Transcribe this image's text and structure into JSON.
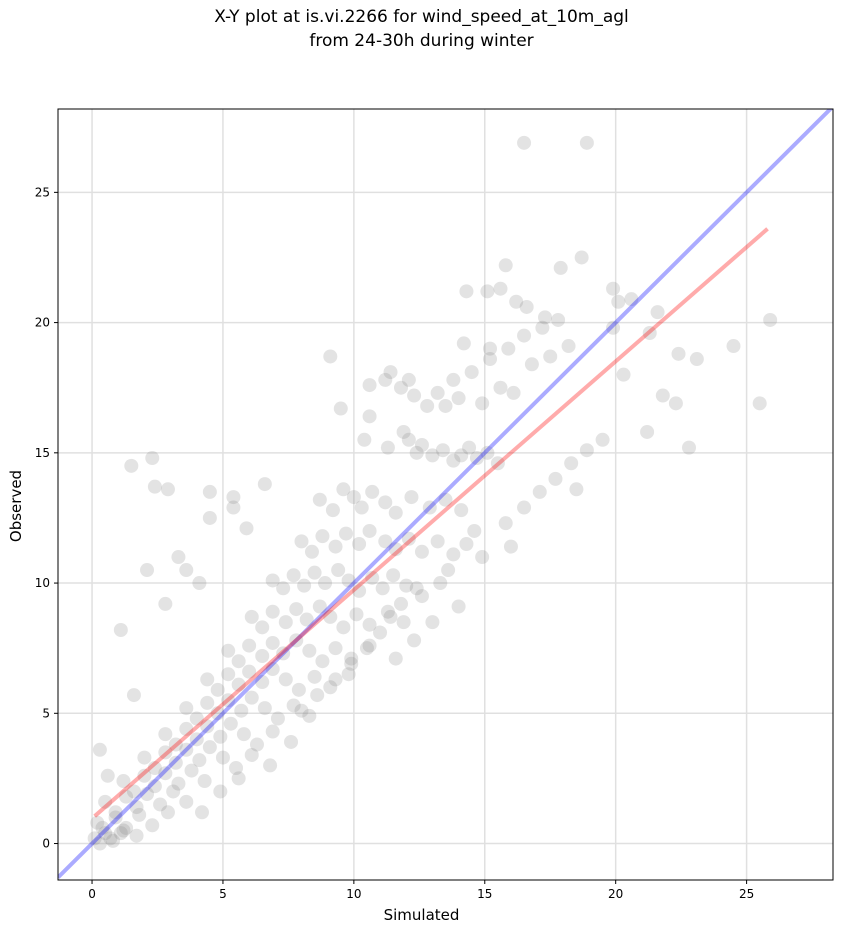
{
  "chart_data": {
    "type": "scatter",
    "title": "X-Y plot at is.vi.2266 for wind_speed_at_10m_agl",
    "subtitle": "from 24-30h during winter",
    "xlabel": "Simulated",
    "ylabel": "Observed",
    "xlim": [
      -1.3,
      28.3
    ],
    "ylim": [
      -1.4,
      28.2
    ],
    "xticks": [
      0,
      5,
      10,
      15,
      20,
      25
    ],
    "yticks": [
      0,
      5,
      10,
      15,
      20,
      25
    ],
    "grid": true,
    "colors": {
      "points": "#808080",
      "identity_line": "#0000ff",
      "fit_line": "#ff0000",
      "grid": "#e0e0e0"
    },
    "identity_line": {
      "x": [
        -1.3,
        28.3
      ],
      "y": [
        -1.3,
        28.3
      ]
    },
    "fit_line": {
      "x": [
        0.1,
        25.8
      ],
      "y": [
        1.05,
        23.6
      ]
    },
    "points": {
      "x": [
        16.5,
        18.9,
        15.8,
        18.7,
        19.9,
        20.1,
        17.9,
        14.3,
        15.1,
        15.6,
        16.2,
        16.6,
        17.3,
        14.2,
        15.2,
        19.9,
        20.6,
        21.3,
        21.6,
        22.4,
        23.1,
        24.5,
        25.5,
        25.9,
        22.3,
        22.8,
        21.8,
        21.2,
        20.3,
        9.5,
        9.1,
        1.5,
        2.3,
        2.4,
        2.9,
        1.1,
        4.5,
        4.5,
        5.4,
        5.4,
        5.9,
        6.6,
        3.3,
        3.6,
        4.1,
        2.1,
        2.8,
        0.3,
        0.6,
        1.6,
        10.6,
        11.2,
        11.4,
        11.8,
        12.1,
        12.3,
        12.8,
        13.2,
        13.5,
        14.0,
        10.6,
        10.4,
        11.3,
        11.9,
        12.1,
        12.4,
        12.6,
        13.0,
        13.4,
        13.8,
        14.1,
        14.4,
        14.7,
        15.1,
        15.5,
        8.7,
        9.2,
        9.6,
        10.0,
        10.3,
        10.7,
        11.2,
        11.6,
        12.2,
        12.9,
        13.5,
        14.1,
        8.0,
        8.4,
        8.8,
        9.3,
        9.7,
        10.2,
        10.6,
        11.2,
        11.6,
        12.1,
        12.6,
        13.2,
        13.8,
        14.3,
        14.9,
        6.9,
        7.3,
        7.7,
        8.1,
        8.5,
        8.9,
        9.4,
        9.8,
        10.2,
        10.7,
        11.1,
        11.5,
        12.0,
        12.6,
        13.3,
        6.1,
        6.5,
        6.9,
        7.4,
        7.8,
        8.2,
        8.7,
        9.1,
        9.6,
        10.1,
        10.6,
        11.3,
        11.9,
        5.2,
        5.6,
        6.0,
        6.5,
        6.9,
        7.3,
        7.8,
        8.3,
        8.8,
        9.3,
        9.9,
        10.6,
        4.4,
        4.8,
        5.2,
        5.6,
        6.0,
        6.5,
        6.9,
        7.4,
        7.9,
        8.5,
        9.1,
        9.8,
        3.6,
        4.0,
        4.4,
        4.8,
        5.2,
        5.7,
        6.1,
        6.6,
        7.1,
        7.7,
        8.3,
        2.8,
        3.2,
        3.6,
        4.0,
        4.4,
        4.9,
        5.3,
        5.8,
        6.3,
        6.9,
        7.6,
        2.0,
        2.4,
        2.8,
        3.2,
        3.6,
        4.1,
        4.5,
        5.0,
        5.5,
        6.1,
        6.8,
        1.2,
        1.6,
        2.0,
        2.4,
        2.8,
        3.3,
        3.8,
        4.3,
        4.9,
        5.6,
        0.5,
        0.9,
        1.3,
        1.7,
        2.1,
        2.6,
        3.1,
        3.6,
        4.2,
        0.2,
        0.5,
        0.9,
        1.3,
        1.8,
        2.3,
        2.9,
        0.1,
        0.4,
        0.8,
        1.2,
        1.7,
        0.3,
        0.7,
        1.1,
        13.8,
        14.5,
        15.2,
        15.9,
        16.5,
        17.2,
        17.8,
        16.8,
        17.5,
        18.2,
        16.1,
        14.9,
        15.6,
        13.6,
        12.4,
        11.8,
        11.4,
        11.0,
        10.5,
        9.9,
        9.3,
        8.6,
        8.0,
        15.8,
        16.5,
        17.1,
        17.7,
        18.3,
        18.9,
        19.5,
        14.6,
        16.0,
        18.5,
        14.0,
        13.0,
        12.3,
        11.6
      ],
      "y": [
        26.9,
        26.9,
        22.2,
        22.5,
        21.3,
        20.8,
        22.1,
        21.2,
        21.2,
        21.3,
        20.8,
        20.6,
        20.2,
        19.2,
        19.0,
        19.8,
        20.9,
        19.6,
        20.4,
        18.8,
        18.6,
        19.1,
        16.9,
        20.1,
        16.9,
        15.2,
        17.2,
        15.8,
        18.0,
        16.7,
        18.7,
        14.5,
        14.8,
        13.7,
        13.6,
        8.2,
        13.5,
        12.5,
        13.3,
        12.9,
        12.1,
        13.8,
        11.0,
        10.5,
        10.0,
        10.5,
        9.2,
        3.6,
        2.6,
        5.7,
        17.6,
        17.8,
        18.1,
        17.5,
        17.8,
        17.2,
        16.8,
        17.3,
        16.8,
        17.1,
        16.4,
        15.5,
        15.2,
        15.8,
        15.5,
        15.0,
        15.3,
        14.9,
        15.1,
        14.7,
        14.9,
        15.2,
        14.8,
        15.0,
        14.6,
        13.2,
        12.8,
        13.6,
        13.3,
        12.9,
        13.5,
        13.1,
        12.7,
        13.3,
        12.9,
        13.2,
        12.8,
        11.6,
        11.2,
        11.8,
        11.4,
        11.9,
        11.5,
        12.0,
        11.6,
        11.3,
        11.7,
        11.2,
        11.6,
        11.1,
        11.5,
        11.0,
        10.1,
        9.8,
        10.3,
        9.9,
        10.4,
        10.0,
        10.5,
        10.1,
        9.7,
        10.2,
        9.8,
        10.3,
        9.9,
        9.5,
        10.0,
        8.7,
        8.3,
        8.9,
        8.5,
        9.0,
        8.6,
        9.1,
        8.7,
        8.3,
        8.8,
        8.4,
        8.9,
        8.5,
        7.4,
        7.0,
        7.6,
        7.2,
        7.7,
        7.3,
        7.8,
        7.4,
        7.0,
        7.5,
        7.1,
        7.6,
        6.3,
        5.9,
        6.5,
        6.1,
        6.6,
        6.2,
        6.7,
        6.3,
        5.9,
        6.4,
        6.0,
        6.5,
        5.2,
        4.8,
        5.4,
        5.0,
        5.5,
        5.1,
        5.6,
        5.2,
        4.8,
        5.3,
        4.9,
        4.2,
        3.8,
        4.4,
        4.0,
        4.5,
        4.1,
        4.6,
        4.2,
        3.8,
        4.3,
        3.9,
        3.3,
        2.9,
        3.5,
        3.1,
        3.6,
        3.2,
        3.7,
        3.3,
        2.9,
        3.4,
        3.0,
        2.4,
        2.0,
        2.6,
        2.2,
        2.7,
        2.3,
        2.8,
        2.4,
        2.0,
        2.5,
        1.6,
        1.2,
        1.8,
        1.4,
        1.9,
        1.5,
        2.0,
        1.6,
        1.2,
        0.8,
        0.4,
        1.0,
        0.6,
        1.1,
        0.7,
        1.2,
        0.2,
        0.6,
        0.1,
        0.5,
        0.3,
        0.0,
        0.2,
        0.4,
        17.8,
        18.1,
        18.6,
        19.0,
        19.5,
        19.8,
        20.1,
        18.4,
        18.7,
        19.1,
        17.3,
        16.9,
        17.5,
        10.5,
        9.8,
        9.2,
        8.7,
        8.1,
        7.5,
        6.9,
        6.3,
        5.7,
        5.1,
        12.3,
        12.9,
        13.5,
        14.0,
        14.6,
        15.1,
        15.5,
        12.0,
        11.4,
        13.6,
        9.1,
        8.5,
        7.8,
        7.1
      ]
    }
  }
}
